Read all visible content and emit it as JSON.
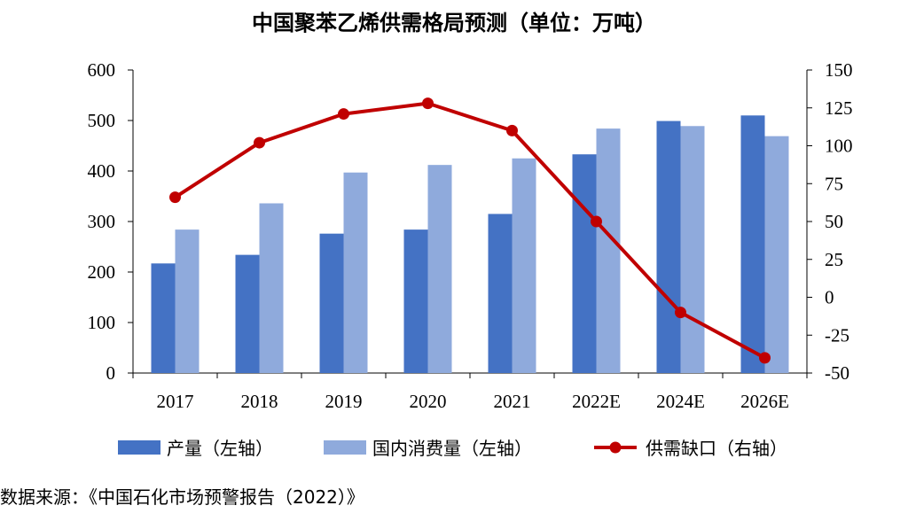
{
  "chart_data": {
    "type": "bar",
    "title": "中国聚苯乙烯供需格局预测（单位：万吨）",
    "categories": [
      "2017",
      "2018",
      "2019",
      "2020",
      "2021",
      "2022E",
      "2024E",
      "2026E"
    ],
    "series": [
      {
        "name": "产量（左轴）",
        "type": "bar",
        "axis": "left",
        "color": "#4472c4",
        "values": [
          217,
          234,
          276,
          284,
          315,
          433,
          499,
          510
        ]
      },
      {
        "name": "国内消费量（左轴）",
        "type": "bar",
        "axis": "left",
        "color": "#8faadc",
        "values": [
          284,
          336,
          397,
          412,
          425,
          484,
          489,
          469
        ]
      },
      {
        "name": "供需缺口（右轴）",
        "type": "line",
        "axis": "right",
        "color": "#c00000",
        "values": [
          66,
          102,
          121,
          128,
          110,
          50,
          -10,
          -40
        ]
      }
    ],
    "y_left": {
      "min": 0,
      "max": 600,
      "ticks": [
        0,
        100,
        200,
        300,
        400,
        500,
        600
      ]
    },
    "y_right": {
      "min": -50,
      "max": 150,
      "ticks": [
        -50,
        -25,
        0,
        25,
        50,
        75,
        100,
        125,
        150
      ]
    },
    "grid": false,
    "legend_position": "bottom"
  },
  "source_note": "数据来源：《中国石化市场预警报告（2022）》"
}
